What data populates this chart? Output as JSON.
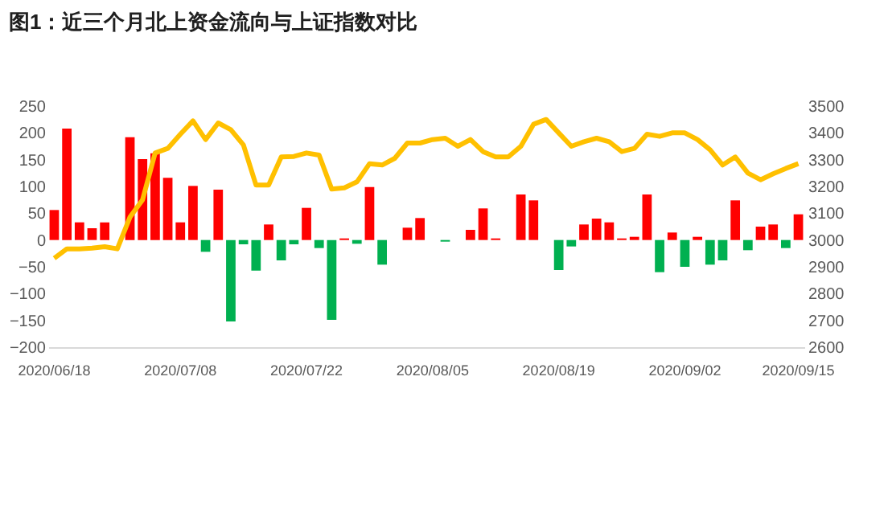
{
  "chart_data": {
    "type": "bar",
    "title": "图1：近三个月北上资金流向与上证指数对比",
    "categories": [
      "2020/06/18",
      null,
      null,
      null,
      null,
      null,
      null,
      null,
      null,
      null,
      "2020/07/08",
      null,
      null,
      null,
      null,
      null,
      null,
      null,
      null,
      null,
      "2020/07/22",
      null,
      null,
      null,
      null,
      null,
      null,
      null,
      null,
      null,
      "2020/08/05",
      null,
      null,
      null,
      null,
      null,
      null,
      null,
      null,
      null,
      "2020/08/19",
      null,
      null,
      null,
      null,
      null,
      null,
      null,
      null,
      null,
      "2020/09/02",
      null,
      null,
      null,
      null,
      null,
      null,
      null,
      null,
      "2020/09/15"
    ],
    "series": [
      {
        "colors": [
          "#ff0000",
          "#ff0000",
          "#ff0000",
          "#ff0000",
          "#ff0000",
          "#ff0000",
          "#ff0000",
          "#ff0000",
          "#ff0000",
          "#ff0000",
          "#ff0000",
          "#ff0000",
          "#00b050",
          "#ff0000",
          "#00b050",
          "#00b050",
          "#00b050",
          "#ff0000",
          "#00b050",
          "#00b050",
          "#ff0000",
          "#00b050",
          "#00b050",
          "#ff0000",
          "#00b050",
          "#ff0000",
          "#00b050",
          "#ff0000",
          "#ff0000",
          "#ff0000",
          "#ff0000",
          "#00b050",
          "#ff0000",
          "#ff0000",
          "#ff0000",
          "#ff0000",
          "#ff0000",
          "#ff0000",
          "#ff0000",
          "#ff0000",
          "#00b050",
          "#00b050",
          "#ff0000",
          "#ff0000",
          "#ff0000",
          "#ff0000",
          "#ff0000",
          "#ff0000",
          "#00b050",
          "#ff0000",
          "#00b050",
          "#ff0000",
          "#00b050",
          "#00b050",
          "#ff0000",
          "#00b050",
          "#ff0000",
          "#ff0000",
          "#00b050",
          "#ff0000"
        ],
        "values": [
          56,
          208,
          33,
          22,
          33,
          0,
          192,
          151,
          162,
          116,
          33,
          101,
          -22,
          94,
          -152,
          -8,
          -57,
          29,
          -38,
          -8,
          60,
          -15,
          -149,
          3,
          -7,
          99,
          -46,
          0,
          23,
          41,
          0,
          -3,
          0,
          19,
          59,
          3,
          0,
          85,
          74,
          0,
          -56,
          -12,
          29,
          40,
          33,
          3,
          6,
          85,
          -60,
          14,
          -50,
          6,
          -46,
          -38,
          74,
          -19,
          25,
          29,
          -15,
          48
        ]
      },
      {
        "type": "line",
        "axis": "y2",
        "color": "#ffc000",
        "values": [
          2932,
          2967,
          2967,
          2970,
          2975,
          2967,
          3085,
          3150,
          3325,
          3342,
          3395,
          3445,
          3375,
          3437,
          3412,
          3355,
          3205,
          3205,
          3310,
          3312,
          3325,
          3317,
          3190,
          3195,
          3217,
          3285,
          3280,
          3305,
          3362,
          3362,
          3375,
          3380,
          3350,
          3375,
          3330,
          3310,
          3310,
          3350,
          3432,
          3450,
          3400,
          3350,
          3367,
          3380,
          3367,
          3330,
          3342,
          3395,
          3387,
          3400,
          3400,
          3375,
          3337,
          3280,
          3310,
          3250,
          3225,
          3247,
          3267,
          3285
        ]
      }
    ],
    "ylim": [
      -200,
      250
    ],
    "yticks": [
      -200,
      -150,
      -100,
      -50,
      0,
      50,
      100,
      150,
      200,
      250
    ],
    "y2lim": [
      2600,
      3500
    ],
    "y2ticks": [
      2600,
      2700,
      2800,
      2900,
      3000,
      3100,
      3200,
      3300,
      3400,
      3500
    ],
    "grid": false
  }
}
